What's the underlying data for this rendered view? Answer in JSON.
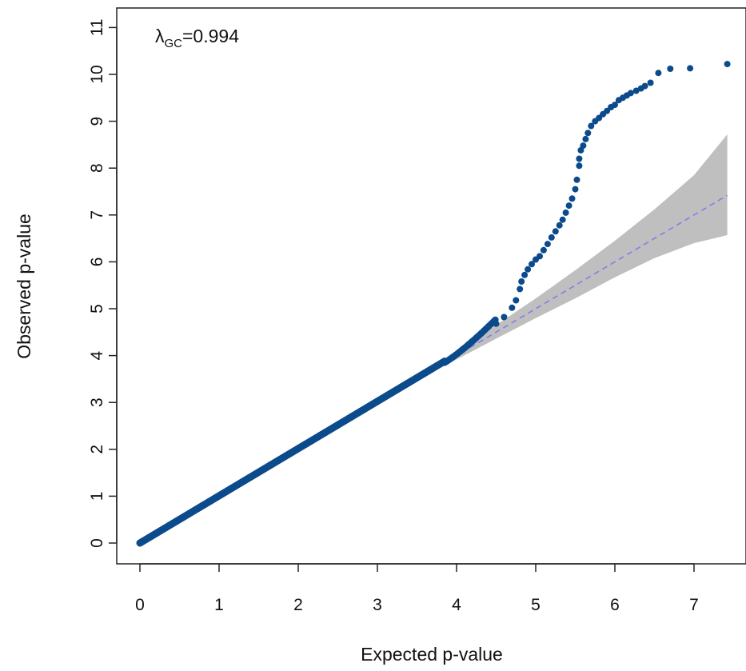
{
  "chart_data": {
    "type": "scatter",
    "title": "",
    "xlabel": "Expected p-value",
    "ylabel": "Observed p-value",
    "xlim": [
      -0.3,
      7.45
    ],
    "ylim": [
      -0.45,
      11.25
    ],
    "x_ticks": [
      "0",
      "1",
      "2",
      "3",
      "4",
      "5",
      "6",
      "7"
    ],
    "y_ticks": [
      "0",
      "1",
      "2",
      "3",
      "4",
      "5",
      "6",
      "7",
      "8",
      "9",
      "10",
      "11"
    ],
    "annotation": {
      "symbol": "λ",
      "subscript": "GC",
      "text": "=0.994"
    },
    "point_color": "#0b4a8b",
    "expected_line": {
      "style": "dashed",
      "color": "#8080e8",
      "from": [
        0,
        0
      ],
      "to": [
        7.42,
        7.42
      ]
    },
    "confidence_band": {
      "color": "#bfbfbf",
      "x": [
        3.9,
        4.5,
        5.0,
        5.5,
        6.0,
        6.5,
        7.0,
        7.42
      ],
      "upper": [
        3.97,
        4.65,
        5.22,
        5.82,
        6.45,
        7.12,
        7.85,
        8.72
      ],
      "lower": [
        3.83,
        4.36,
        4.8,
        5.22,
        5.67,
        6.08,
        6.4,
        6.57
      ]
    },
    "series": [
      {
        "points": [
          [
            4.5,
            4.68
          ],
          [
            4.6,
            4.82
          ],
          [
            4.7,
            5.02
          ],
          [
            4.75,
            5.18
          ],
          [
            4.8,
            5.42
          ],
          [
            4.82,
            5.58
          ],
          [
            4.86,
            5.72
          ],
          [
            4.9,
            5.84
          ],
          [
            4.95,
            5.95
          ],
          [
            5.0,
            6.05
          ],
          [
            5.05,
            6.12
          ],
          [
            5.1,
            6.25
          ],
          [
            5.15,
            6.38
          ],
          [
            5.2,
            6.52
          ],
          [
            5.25,
            6.65
          ],
          [
            5.3,
            6.78
          ],
          [
            5.34,
            6.9
          ],
          [
            5.38,
            7.05
          ],
          [
            5.42,
            7.2
          ],
          [
            5.46,
            7.35
          ],
          [
            5.5,
            7.55
          ],
          [
            5.52,
            7.75
          ],
          [
            5.55,
            8.05
          ],
          [
            5.55,
            8.2
          ],
          [
            5.57,
            8.38
          ],
          [
            5.6,
            8.48
          ],
          [
            5.63,
            8.62
          ],
          [
            5.66,
            8.75
          ],
          [
            5.7,
            8.9
          ],
          [
            5.75,
            9.0
          ],
          [
            5.8,
            9.07
          ],
          [
            5.85,
            9.15
          ],
          [
            5.9,
            9.22
          ],
          [
            5.95,
            9.3
          ],
          [
            6.0,
            9.35
          ],
          [
            6.05,
            9.45
          ],
          [
            6.1,
            9.5
          ],
          [
            6.15,
            9.55
          ],
          [
            6.2,
            9.6
          ],
          [
            6.27,
            9.65
          ],
          [
            6.33,
            9.7
          ],
          [
            6.38,
            9.75
          ],
          [
            6.45,
            9.82
          ],
          [
            6.55,
            10.03
          ],
          [
            6.7,
            10.12
          ],
          [
            6.95,
            10.13
          ],
          [
            7.42,
            10.22
          ]
        ]
      }
    ]
  }
}
